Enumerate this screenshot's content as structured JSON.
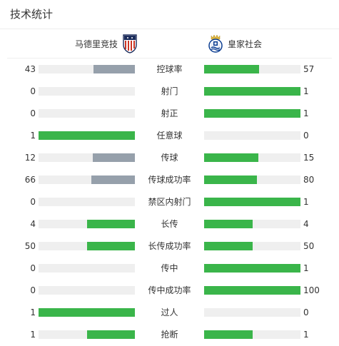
{
  "title": "技术统计",
  "colors": {
    "win": "#3ab54a",
    "lose": "#96a0ab",
    "track": "#efefef"
  },
  "teams": {
    "home": {
      "name": "马德里竞技",
      "logo_icon": "atletico-madrid-crest-icon"
    },
    "away": {
      "name": "皇家社会",
      "logo_icon": "real-sociedad-crest-icon"
    }
  },
  "stats": [
    {
      "label": "控球率",
      "home": "43",
      "away": "57",
      "home_fraction": 0.43,
      "away_fraction": 0.57,
      "home_color": "lose",
      "away_color": "win"
    },
    {
      "label": "射门",
      "home": "0",
      "away": "1",
      "home_fraction": 0,
      "away_fraction": 1,
      "home_color": "lose",
      "away_color": "win"
    },
    {
      "label": "射正",
      "home": "0",
      "away": "1",
      "home_fraction": 0,
      "away_fraction": 1,
      "home_color": "lose",
      "away_color": "win"
    },
    {
      "label": "任意球",
      "home": "1",
      "away": "0",
      "home_fraction": 1,
      "away_fraction": 0,
      "home_color": "win",
      "away_color": "lose"
    },
    {
      "label": "传球",
      "home": "12",
      "away": "15",
      "home_fraction": 0.44,
      "away_fraction": 0.56,
      "home_color": "lose",
      "away_color": "win"
    },
    {
      "label": "传球成功率",
      "home": "66",
      "away": "80",
      "home_fraction": 0.45,
      "away_fraction": 0.55,
      "home_color": "lose",
      "away_color": "win"
    },
    {
      "label": "禁区内射门",
      "home": "0",
      "away": "1",
      "home_fraction": 0,
      "away_fraction": 1,
      "home_color": "lose",
      "away_color": "win"
    },
    {
      "label": "长传",
      "home": "4",
      "away": "4",
      "home_fraction": 0.5,
      "away_fraction": 0.5,
      "home_color": "win",
      "away_color": "win"
    },
    {
      "label": "长传成功率",
      "home": "50",
      "away": "50",
      "home_fraction": 0.5,
      "away_fraction": 0.5,
      "home_color": "win",
      "away_color": "win"
    },
    {
      "label": "传中",
      "home": "0",
      "away": "1",
      "home_fraction": 0,
      "away_fraction": 1,
      "home_color": "lose",
      "away_color": "win"
    },
    {
      "label": "传中成功率",
      "home": "0",
      "away": "100",
      "home_fraction": 0,
      "away_fraction": 1,
      "home_color": "lose",
      "away_color": "win"
    },
    {
      "label": "过人",
      "home": "1",
      "away": "0",
      "home_fraction": 1,
      "away_fraction": 0,
      "home_color": "win",
      "away_color": "lose"
    },
    {
      "label": "抢断",
      "home": "1",
      "away": "1",
      "home_fraction": 0.5,
      "away_fraction": 0.5,
      "home_color": "win",
      "away_color": "win"
    }
  ]
}
